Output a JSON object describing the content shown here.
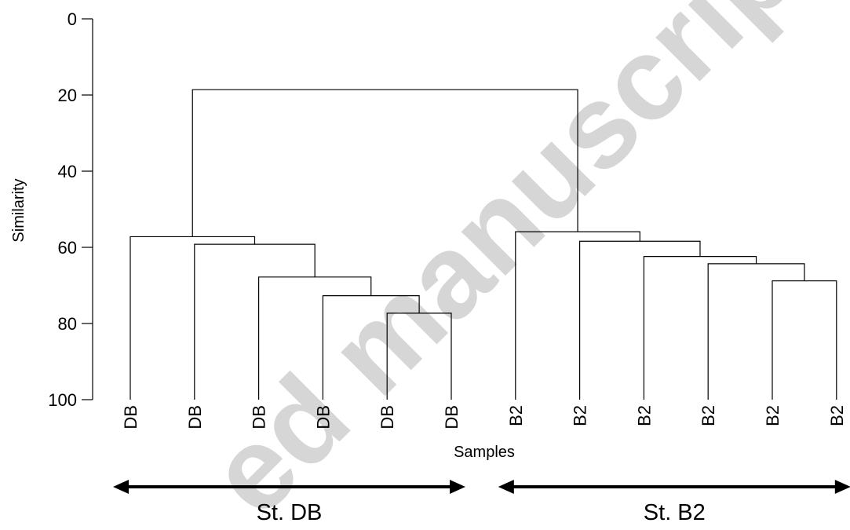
{
  "chart_data": {
    "type": "dendrogram",
    "ylabel": "Similarity",
    "xlabel": "Samples",
    "ylim": [
      0,
      100
    ],
    "y_ticks": [
      0,
      20,
      40,
      60,
      80,
      100
    ],
    "y_inverted": true,
    "leaves": [
      "DB",
      "DB",
      "DB",
      "DB",
      "DB",
      "DB",
      "B2",
      "B2",
      "B2",
      "B2",
      "B2",
      "B2"
    ],
    "merges": [
      {
        "left": "L4",
        "right": "L5",
        "height": 77.3
      },
      {
        "left": "L3",
        "right": "M0",
        "height": 72.7
      },
      {
        "left": "L2",
        "right": "M1",
        "height": 67.8
      },
      {
        "left": "L1",
        "right": "M2",
        "height": 59.2
      },
      {
        "left": "L0",
        "right": "M3",
        "height": 57.2
      },
      {
        "left": "L10",
        "right": "L11",
        "height": 68.8
      },
      {
        "left": "L9",
        "right": "M5",
        "height": 64.3
      },
      {
        "left": "L8",
        "right": "M6",
        "height": 62.4
      },
      {
        "left": "L7",
        "right": "M7",
        "height": 58.4
      },
      {
        "left": "L6",
        "right": "M8",
        "height": 55.9
      },
      {
        "left": "M4",
        "right": "M9",
        "height": 18.6
      }
    ],
    "groups": [
      {
        "label": "St. DB",
        "from_leaf": 0,
        "to_leaf": 5
      },
      {
        "label": "St. B2",
        "from_leaf": 6,
        "to_leaf": 11
      }
    ],
    "line_color": "#000000",
    "arrow_color": "#000000"
  },
  "watermark": "ed manuscript"
}
